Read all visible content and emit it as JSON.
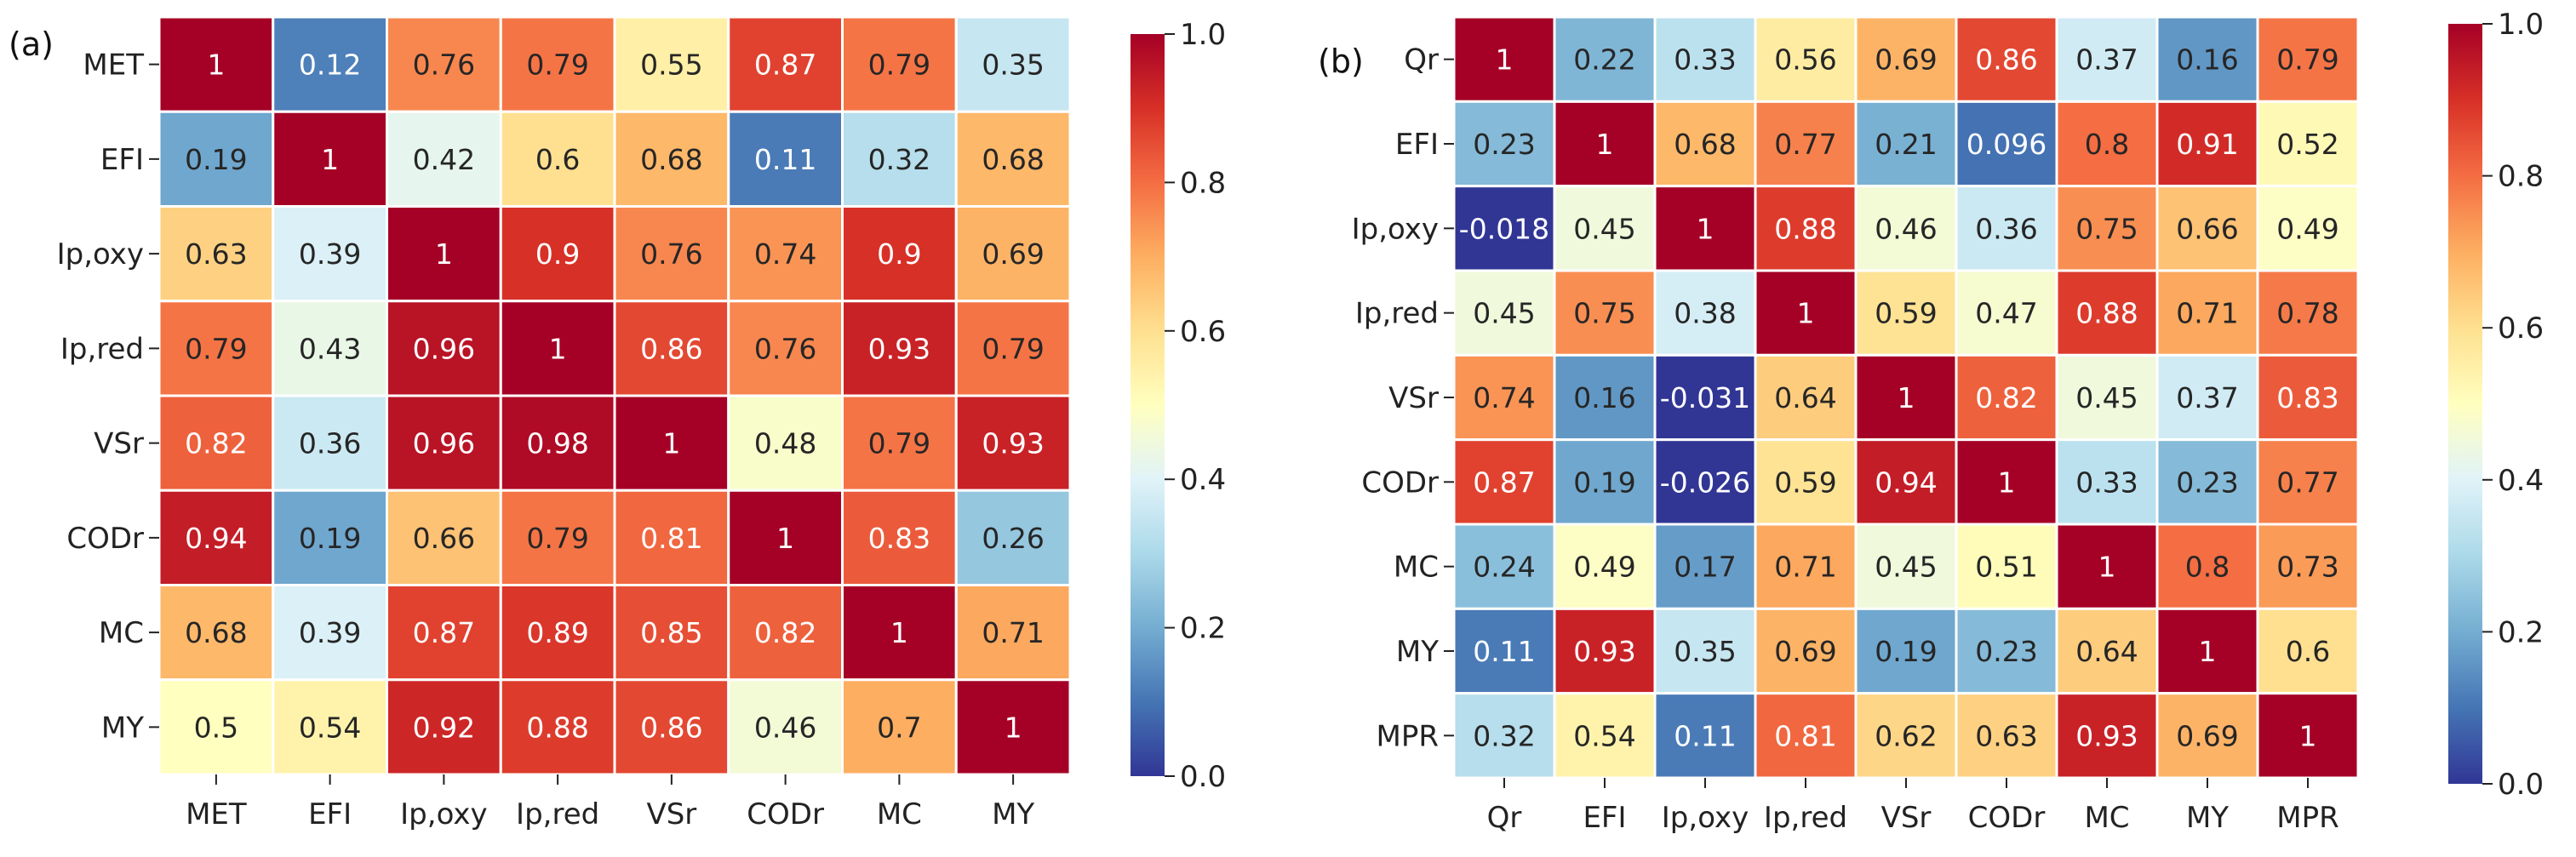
{
  "chart_data": [
    {
      "type": "heatmap",
      "panel_label": "(a)",
      "title": "",
      "xlabel": "",
      "ylabel": "",
      "rows": [
        "MET",
        "EFI",
        "Ip,oxy",
        "Ip,red",
        "VSr",
        "CODr",
        "MC",
        "MY"
      ],
      "cols": [
        "MET",
        "EFI",
        "Ip,oxy",
        "Ip,red",
        "VSr",
        "CODr",
        "MC",
        "MY"
      ],
      "values": [
        [
          1,
          0.12,
          0.76,
          0.79,
          0.55,
          0.87,
          0.79,
          0.35
        ],
        [
          0.19,
          1,
          0.42,
          0.6,
          0.68,
          0.11,
          0.32,
          0.68
        ],
        [
          0.63,
          0.39,
          1,
          0.9,
          0.76,
          0.74,
          0.9,
          0.69
        ],
        [
          0.79,
          0.43,
          0.96,
          1,
          0.86,
          0.76,
          0.93,
          0.79
        ],
        [
          0.82,
          0.36,
          0.96,
          0.98,
          1,
          0.48,
          0.79,
          0.93
        ],
        [
          0.94,
          0.19,
          0.66,
          0.79,
          0.81,
          1,
          0.83,
          0.26
        ],
        [
          0.68,
          0.39,
          0.87,
          0.89,
          0.85,
          0.82,
          1,
          0.71
        ],
        [
          0.5,
          0.54,
          0.92,
          0.88,
          0.86,
          0.46,
          0.7,
          1
        ]
      ],
      "labels": [
        [
          "1",
          "0.12",
          "0.76",
          "0.79",
          "0.55",
          "0.87",
          "0.79",
          "0.35"
        ],
        [
          "0.19",
          "1",
          "0.42",
          "0.6",
          "0.68",
          "0.11",
          "0.32",
          "0.68"
        ],
        [
          "0.63",
          "0.39",
          "1",
          "0.9",
          "0.76",
          "0.74",
          "0.9",
          "0.69"
        ],
        [
          "0.79",
          "0.43",
          "0.96",
          "1",
          "0.86",
          "0.76",
          "0.93",
          "0.79"
        ],
        [
          "0.82",
          "0.36",
          "0.96",
          "0.98",
          "1",
          "0.48",
          "0.79",
          "0.93"
        ],
        [
          "0.94",
          "0.19",
          "0.66",
          "0.79",
          "0.81",
          "1",
          "0.83",
          "0.26"
        ],
        [
          "0.68",
          "0.39",
          "0.87",
          "0.89",
          "0.85",
          "0.82",
          "1",
          "0.71"
        ],
        [
          "0.5",
          "0.54",
          "0.92",
          "0.88",
          "0.86",
          "0.46",
          "0.7",
          "1"
        ]
      ],
      "colorbar": {
        "range": [
          0,
          1
        ],
        "ticks": [
          "0.0",
          "0.2",
          "0.4",
          "0.6",
          "0.8",
          "1.0"
        ],
        "colormap": "RdYlBu_r"
      }
    },
    {
      "type": "heatmap",
      "panel_label": "(b)",
      "title": "",
      "xlabel": "",
      "ylabel": "",
      "rows": [
        "Qr",
        "EFI",
        "Ip,oxy",
        "Ip,red",
        "VSr",
        "CODr",
        "MC",
        "MY",
        "MPR"
      ],
      "cols": [
        "Qr",
        "EFI",
        "Ip,oxy",
        "Ip,red",
        "VSr",
        "CODr",
        "MC",
        "MY",
        "MPR"
      ],
      "values": [
        [
          1,
          0.22,
          0.33,
          0.56,
          0.69,
          0.86,
          0.37,
          0.16,
          0.79
        ],
        [
          0.23,
          1,
          0.68,
          0.77,
          0.21,
          0.096,
          0.8,
          0.91,
          0.52
        ],
        [
          -0.018,
          0.45,
          1,
          0.88,
          0.46,
          0.36,
          0.75,
          0.66,
          0.49
        ],
        [
          0.45,
          0.75,
          0.38,
          1,
          0.59,
          0.47,
          0.88,
          0.71,
          0.78
        ],
        [
          0.74,
          0.16,
          -0.031,
          0.64,
          1,
          0.82,
          0.45,
          0.37,
          0.83
        ],
        [
          0.87,
          0.19,
          -0.026,
          0.59,
          0.94,
          1,
          0.33,
          0.23,
          0.77
        ],
        [
          0.24,
          0.49,
          0.17,
          0.71,
          0.45,
          0.51,
          1,
          0.8,
          0.73
        ],
        [
          0.11,
          0.93,
          0.35,
          0.69,
          0.19,
          0.23,
          0.64,
          1,
          0.6
        ],
        [
          0.32,
          0.54,
          0.11,
          0.81,
          0.62,
          0.63,
          0.93,
          0.69,
          1
        ]
      ],
      "labels": [
        [
          "1",
          "0.22",
          "0.33",
          "0.56",
          "0.69",
          "0.86",
          "0.37",
          "0.16",
          "0.79"
        ],
        [
          "0.23",
          "1",
          "0.68",
          "0.77",
          "0.21",
          "0.096",
          "0.8",
          "0.91",
          "0.52"
        ],
        [
          "-0.018",
          "0.45",
          "1",
          "0.88",
          "0.46",
          "0.36",
          "0.75",
          "0.66",
          "0.49"
        ],
        [
          "0.45",
          "0.75",
          "0.38",
          "1",
          "0.59",
          "0.47",
          "0.88",
          "0.71",
          "0.78"
        ],
        [
          "0.74",
          "0.16",
          "-0.031",
          "0.64",
          "1",
          "0.82",
          "0.45",
          "0.37",
          "0.83"
        ],
        [
          "0.87",
          "0.19",
          "-0.026",
          "0.59",
          "0.94",
          "1",
          "0.33",
          "0.23",
          "0.77"
        ],
        [
          "0.24",
          "0.49",
          "0.17",
          "0.71",
          "0.45",
          "0.51",
          "1",
          "0.8",
          "0.73"
        ],
        [
          "0.11",
          "0.93",
          "0.35",
          "0.69",
          "0.19",
          "0.23",
          "0.64",
          "1",
          "0.6"
        ],
        [
          "0.32",
          "0.54",
          "0.11",
          "0.81",
          "0.62",
          "0.63",
          "0.93",
          "0.69",
          "1"
        ]
      ],
      "colorbar": {
        "range": [
          0,
          1
        ],
        "ticks": [
          "0.0",
          "0.2",
          "0.4",
          "0.6",
          "0.8",
          "1.0"
        ],
        "colormap": "RdYlBu_r"
      }
    }
  ]
}
